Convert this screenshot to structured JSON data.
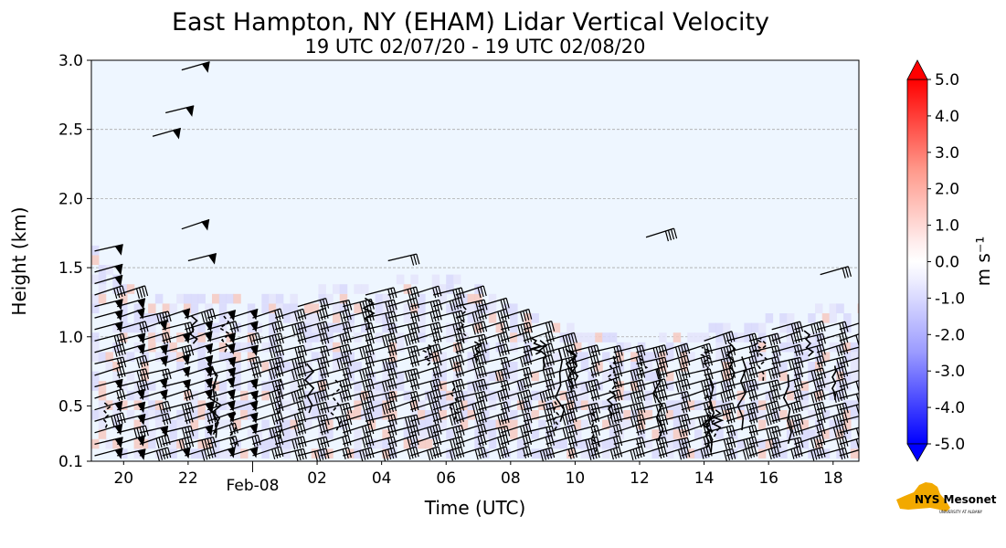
{
  "chart_data": {
    "type": "heatmap",
    "title": "East Hampton, NY (EHAM) Lidar Vertical Velocity",
    "subtitle": "19 UTC 02/07/20 - 19 UTC 02/08/20",
    "xlabel": "Time (UTC)",
    "ylabel": "Height (km)",
    "xlim_hours": [
      19,
      42.8
    ],
    "ylim": [
      0.1,
      3.0
    ],
    "x_ticks": [
      {
        "label": "20",
        "hour": 20
      },
      {
        "label": "22",
        "hour": 22
      },
      {
        "label": "02",
        "hour": 26
      },
      {
        "label": "04",
        "hour": 28
      },
      {
        "label": "06",
        "hour": 30
      },
      {
        "label": "08",
        "hour": 32
      },
      {
        "label": "10",
        "hour": 34
      },
      {
        "label": "12",
        "hour": 36
      },
      {
        "label": "14",
        "hour": 38
      },
      {
        "label": "16",
        "hour": 40
      },
      {
        "label": "18",
        "hour": 42
      }
    ],
    "date_tick": {
      "label": "Feb-08",
      "hour": 24
    },
    "y_ticks": [
      {
        "label": "0.1",
        "value": 0.1
      },
      {
        "label": "0.5",
        "value": 0.5
      },
      {
        "label": "1.0",
        "value": 1.0
      },
      {
        "label": "1.5",
        "value": 1.5
      },
      {
        "label": "2.0",
        "value": 2.0
      },
      {
        "label": "2.5",
        "value": 2.5
      },
      {
        "label": "3.0",
        "value": 3.0
      }
    ],
    "gridlines_y": [
      1.0,
      1.5,
      2.0,
      2.5
    ],
    "background_color": "#eef6ff",
    "colorbar": {
      "label": "m s⁻¹",
      "range": [
        -5.0,
        5.0
      ],
      "tick_labels": [
        "5.0",
        "4.0",
        "3.0",
        "2.0",
        "1.0",
        "0.0",
        "-1.0",
        "-2.0",
        "-3.0",
        "-4.0",
        "-5.0"
      ],
      "tick_values": [
        5,
        4,
        3,
        2,
        1,
        0,
        -1,
        -2,
        -3,
        -4,
        -5
      ],
      "colors": {
        "max": "#ff0000",
        "mid": "#ffffff",
        "min": "#0000ff"
      },
      "extend": "both"
    },
    "boundary_layer_top_km": [
      {
        "hour": 19.0,
        "km": 1.5
      },
      {
        "hour": 20.5,
        "km": 1.15
      },
      {
        "hour": 22.0,
        "km": 1.15
      },
      {
        "hour": 24.0,
        "km": 1.15
      },
      {
        "hour": 26.0,
        "km": 1.2
      },
      {
        "hour": 28.0,
        "km": 1.3
      },
      {
        "hour": 30.0,
        "km": 1.3
      },
      {
        "hour": 32.0,
        "km": 1.05
      },
      {
        "hour": 34.0,
        "km": 0.9
      },
      {
        "hour": 36.0,
        "km": 0.85
      },
      {
        "hour": 38.0,
        "km": 0.92
      },
      {
        "hour": 40.0,
        "km": 1.0
      },
      {
        "hour": 42.8,
        "km": 1.1
      }
    ]
  },
  "logo": {
    "text": "NYS Mesonet",
    "subtext": "UNIVERSITY AT ALBANY"
  }
}
